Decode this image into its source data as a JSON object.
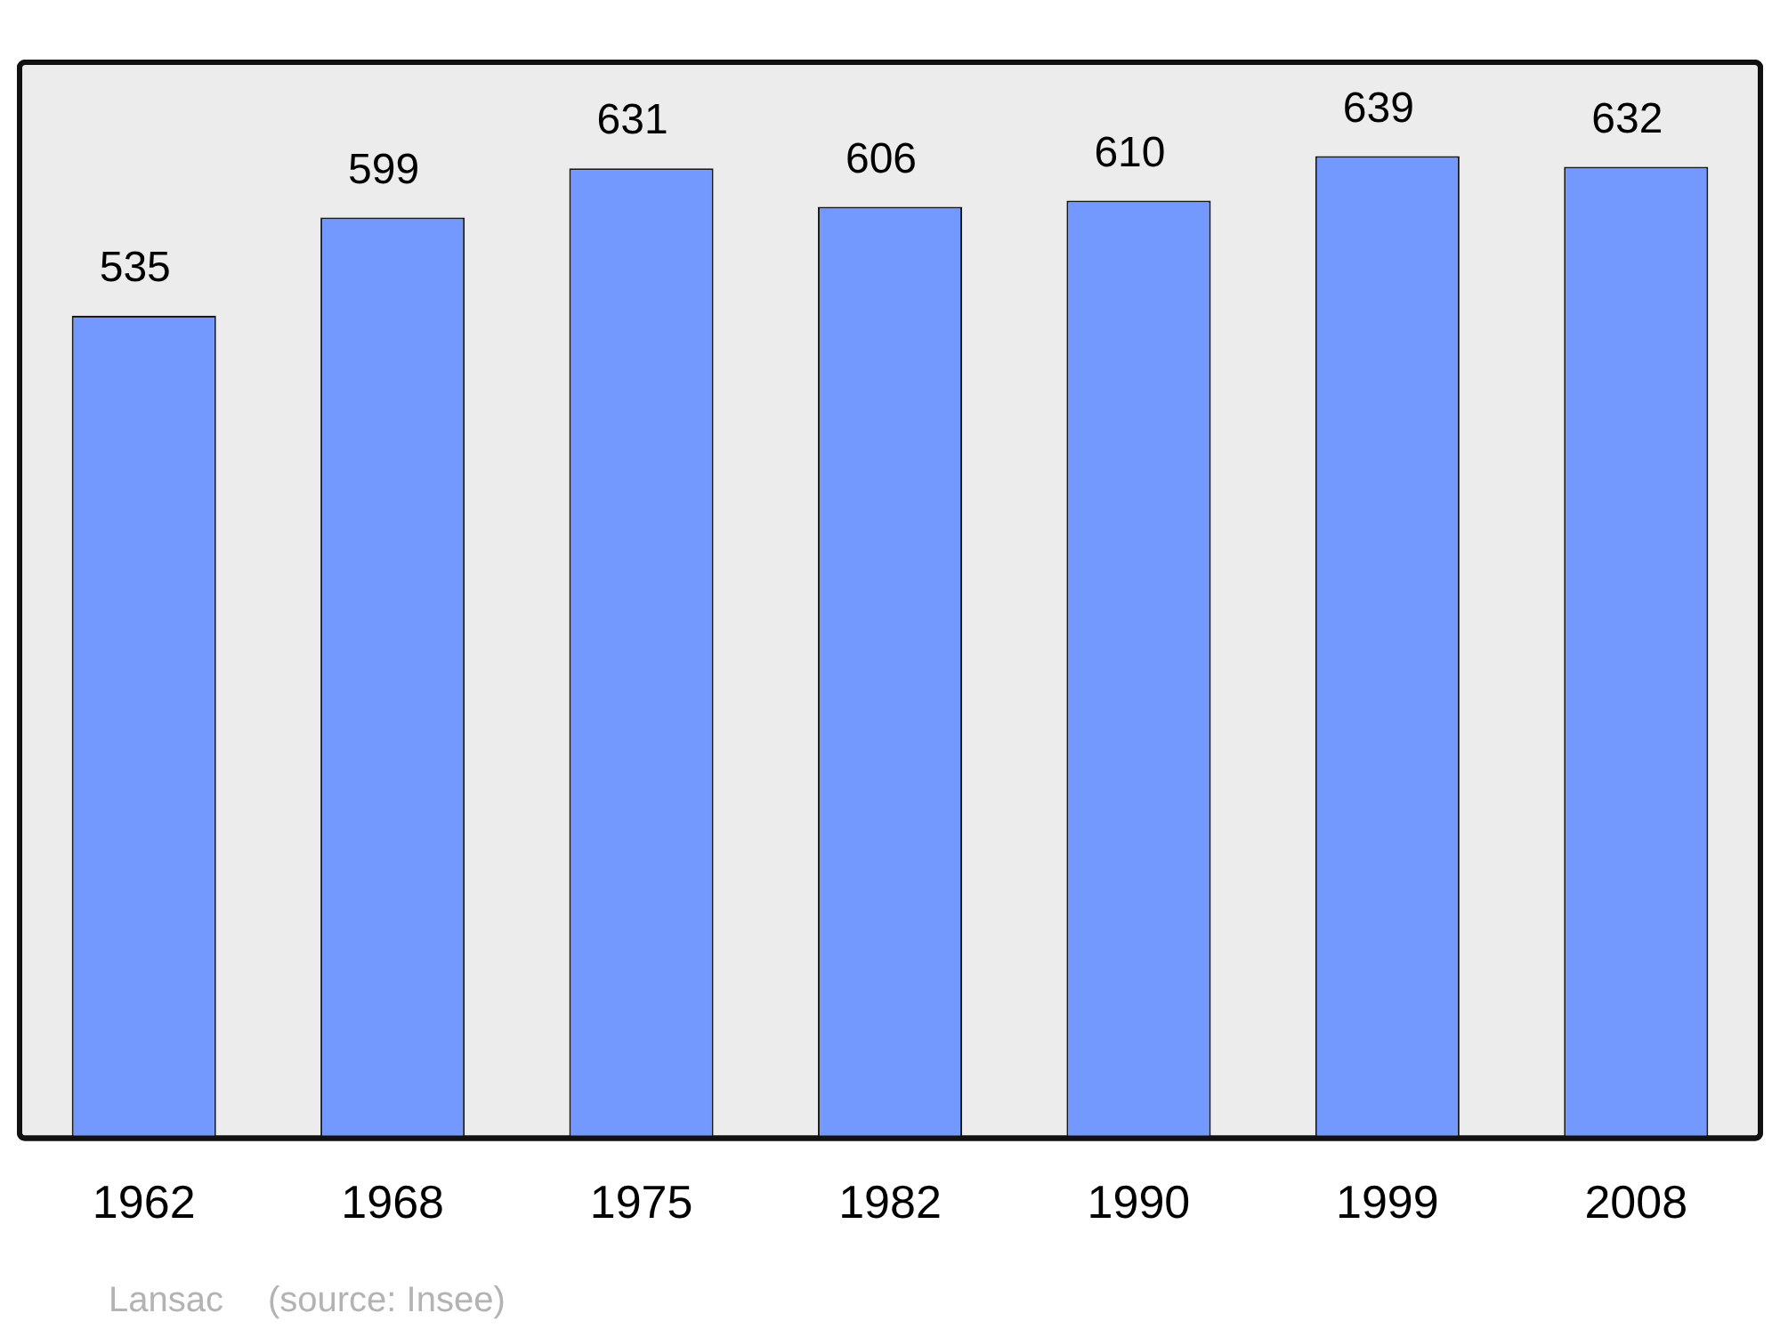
{
  "chart_data": {
    "type": "bar",
    "categories": [
      "1962",
      "1968",
      "1975",
      "1982",
      "1990",
      "1999",
      "2008"
    ],
    "values": [
      535,
      599,
      631,
      606,
      610,
      639,
      632
    ],
    "color": "#7399ff",
    "ylim": [
      0,
      700
    ],
    "data_labels": true,
    "grid": false,
    "legend": false,
    "annotations": [
      "Lansac",
      "(source: Insee)"
    ]
  }
}
